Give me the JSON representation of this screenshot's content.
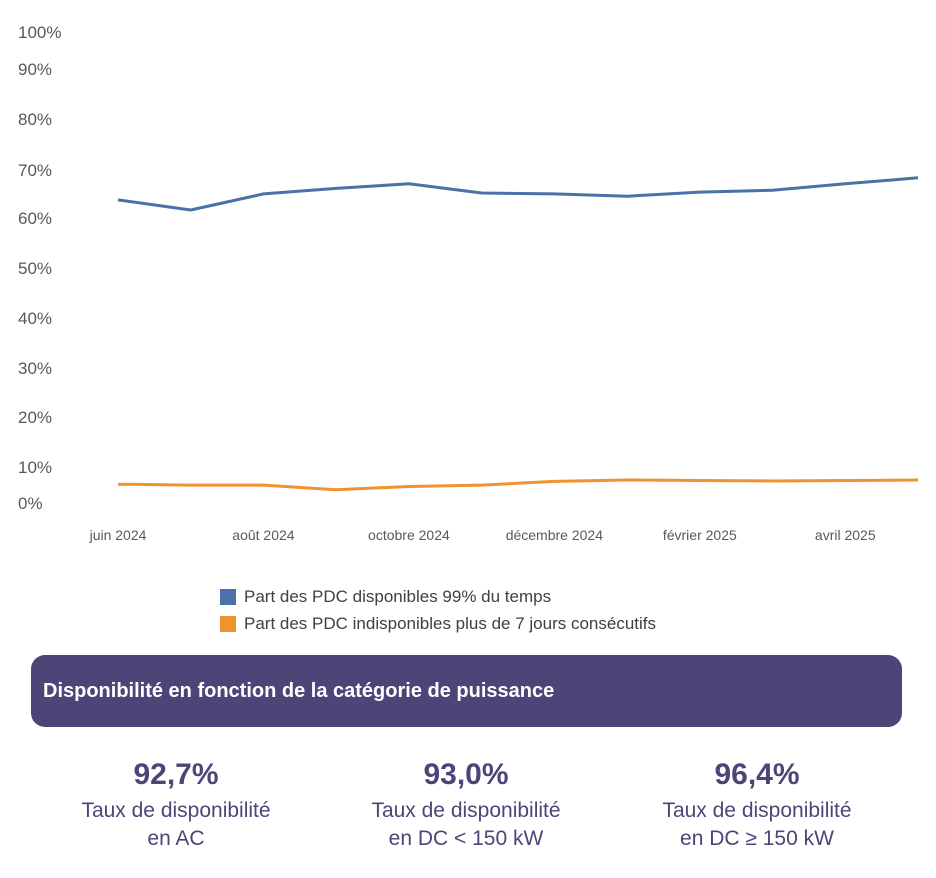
{
  "chart_data": {
    "type": "line",
    "x": [
      "juin 2024",
      "juil. 2024",
      "août 2024",
      "sept. 2024",
      "octobre 2024",
      "novembre 2024",
      "décembre 2024",
      "janvier 2025",
      "février 2025",
      "mars 2025",
      "avril 2025",
      "mai 2025"
    ],
    "x_tick_labels": [
      "juin 2024",
      "août 2024",
      "octobre 2024",
      "décembre 2024",
      "février 2025",
      "avril 2025"
    ],
    "y_tick_labels": [
      "100%",
      "90%",
      "80%",
      "70%",
      "60%",
      "50%",
      "40%",
      "30%",
      "20%",
      "10%",
      "0%"
    ],
    "ylim": [
      0,
      100
    ],
    "series": [
      {
        "name": "Part des PDC disponibles 99% du temps",
        "color": "#4a72a6",
        "values": [
          63.5,
          61.3,
          64.8,
          66.0,
          67.0,
          65.0,
          64.8,
          64.3,
          65.2,
          65.6,
          67.0,
          68.3
        ]
      },
      {
        "name": "Part des PDC indisponibles plus de 7 jours consécutifs",
        "color": "#f0922e",
        "values": [
          1.7,
          1.5,
          1.5,
          0.5,
          1.2,
          1.5,
          2.3,
          2.6,
          2.5,
          2.4,
          2.5,
          2.6
        ]
      }
    ]
  },
  "banner": {
    "title": "Disponibilité en fonction de la catégorie de puissance",
    "color": "#4f4478"
  },
  "stats": [
    {
      "value": "92,7%",
      "label_line1": "Taux de disponibilité",
      "label_line2": "en AC"
    },
    {
      "value": "93,0%",
      "label_line1": "Taux de disponibilité",
      "label_line2": "en DC < 150 kW"
    },
    {
      "value": "96,4%",
      "label_line1": "Taux de disponibilité",
      "label_line2": "en DC ≥ 150 kW"
    }
  ]
}
